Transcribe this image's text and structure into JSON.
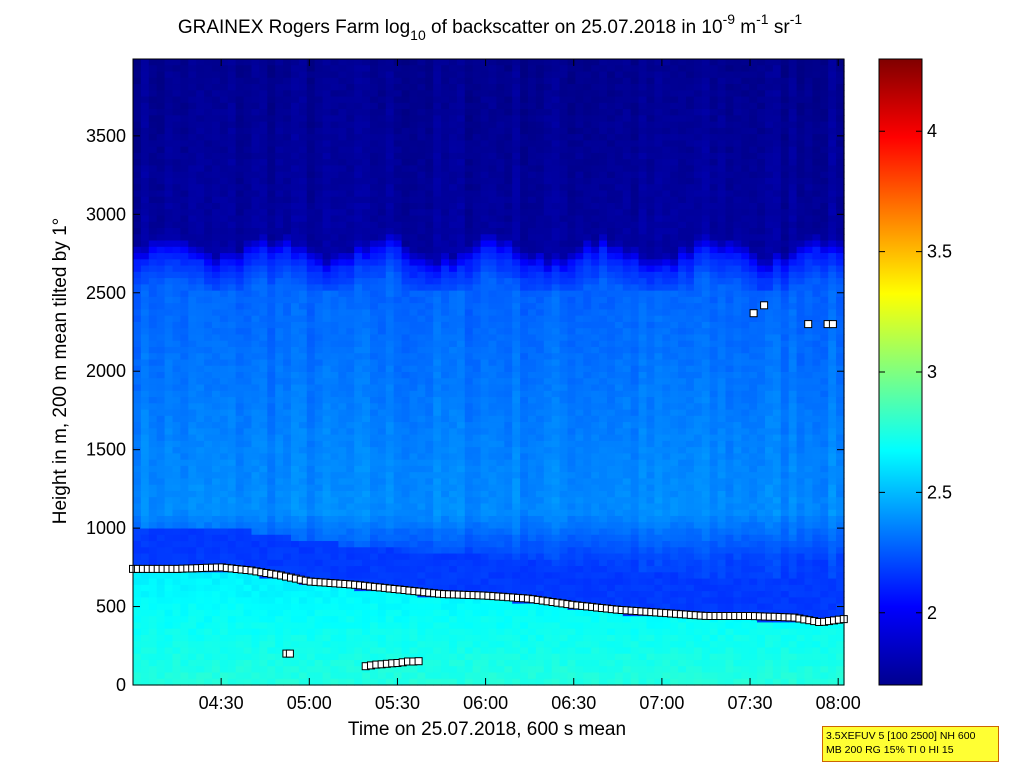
{
  "chart_data": {
    "type": "heatmap",
    "title": {
      "main": "GRAINEX Rogers Farm log",
      "sub10": "10",
      "after_log": " of backscatter on 25.07.2018 in 10",
      "sup_m9": "-9",
      "m_text": " m",
      "sup_m1": "-1",
      "sr_text": " sr",
      "sup_sr": "-1"
    },
    "xlabel": "Time on 25.07.2018, 600 s mean",
    "ylabel": "Height in m, 200 m mean tilted by 1°",
    "x_ticks": [
      {
        "label": "04:30",
        "hours": 4.5
      },
      {
        "label": "05:00",
        "hours": 5.0
      },
      {
        "label": "05:30",
        "hours": 5.5
      },
      {
        "label": "06:00",
        "hours": 6.0
      },
      {
        "label": "06:30",
        "hours": 6.5
      },
      {
        "label": "07:00",
        "hours": 7.0
      },
      {
        "label": "07:30",
        "hours": 7.5
      },
      {
        "label": "08:00",
        "hours": 8.0
      }
    ],
    "xlim_hours": [
      4.0,
      8.033
    ],
    "y_ticks": [
      0,
      500,
      1000,
      1500,
      2000,
      2500,
      3000,
      3500
    ],
    "ylim": [
      0,
      3990
    ],
    "colorbar": {
      "ticks": [
        "2",
        "2.5",
        "3",
        "3.5",
        "4"
      ],
      "tick_values": [
        2,
        2.5,
        3,
        3.5,
        4
      ],
      "clim": [
        1.7,
        4.3
      ],
      "colormap": "jet"
    },
    "field": {
      "description_levels": [
        {
          "height_m": 0,
          "value": 2.75
        },
        {
          "height_m": 400,
          "value": 2.72
        },
        {
          "height_m": 500,
          "value": 2.18
        },
        {
          "height_m": 800,
          "value": 2.2
        },
        {
          "height_m": 1100,
          "value": 2.38
        },
        {
          "height_m": 1500,
          "value": 2.36
        },
        {
          "height_m": 2000,
          "value": 2.32
        },
        {
          "height_m": 2500,
          "value": 2.28
        },
        {
          "height_m": 2700,
          "value": 2.1
        },
        {
          "height_m": 2800,
          "value": 1.78
        },
        {
          "height_m": 3990,
          "value": 1.74
        }
      ]
    },
    "boundary_layer_height": {
      "hours": [
        4.0,
        4.25,
        4.5,
        4.67,
        4.83,
        5.0,
        5.25,
        5.5,
        5.75,
        6.0,
        6.25,
        6.5,
        6.75,
        7.0,
        7.25,
        7.5,
        7.75,
        7.9,
        8.03
      ],
      "height_m": [
        740,
        740,
        750,
        730,
        700,
        660,
        640,
        610,
        580,
        570,
        550,
        510,
        480,
        460,
        440,
        440,
        430,
        400,
        420
      ]
    },
    "low_cloud_points": {
      "hours": [
        4.87,
        4.89,
        5.32,
        5.35,
        5.38,
        5.41,
        5.44,
        5.47,
        5.5,
        5.53,
        5.56,
        5.59,
        5.62
      ],
      "height_m": [
        200,
        200,
        120,
        125,
        130,
        132,
        135,
        138,
        140,
        145,
        150,
        150,
        152
      ]
    },
    "elevated_points": {
      "hours": [
        7.52,
        7.58,
        7.83,
        7.94,
        7.97
      ],
      "height_m": [
        2370,
        2420,
        2300,
        2300,
        2300
      ]
    }
  },
  "info_box": {
    "line1": "3.5XEFUV 5 [100 2500] NH 600",
    "line2": "MB 200 RG 15% TI 0 HI 15"
  }
}
